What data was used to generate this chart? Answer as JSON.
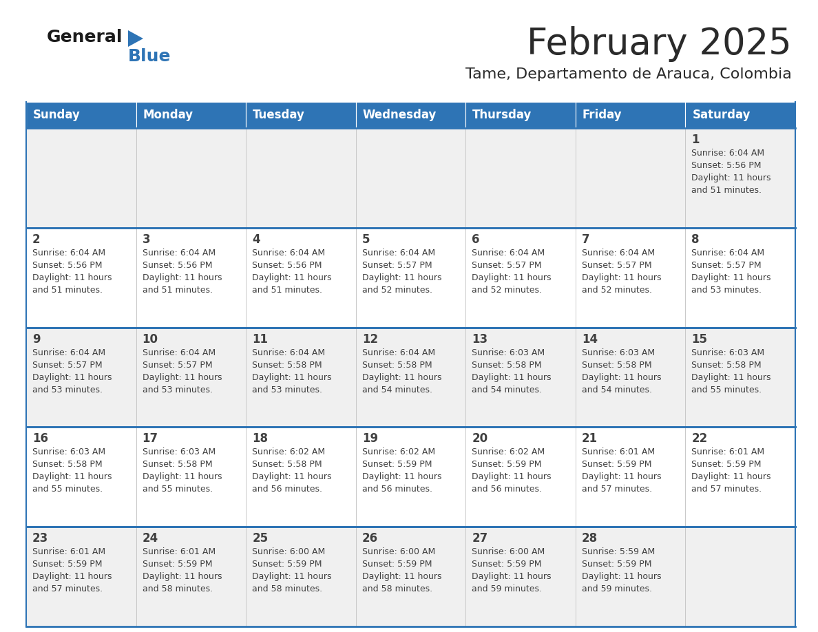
{
  "title": "February 2025",
  "subtitle": "Tame, Departamento de Arauca, Colombia",
  "header_bg": "#2E74B5",
  "header_text": "#FFFFFF",
  "cell_bg_odd": "#F0F0F0",
  "cell_bg_even": "#FFFFFF",
  "row_line_color": "#2E74B5",
  "text_color": "#404040",
  "days_of_week": [
    "Sunday",
    "Monday",
    "Tuesday",
    "Wednesday",
    "Thursday",
    "Friday",
    "Saturday"
  ],
  "calendar_data": [
    [
      null,
      null,
      null,
      null,
      null,
      null,
      {
        "day": 1,
        "sunrise": "6:04 AM",
        "sunset": "5:56 PM",
        "daylight_line1": "Daylight: 11 hours",
        "daylight_line2": "and 51 minutes."
      }
    ],
    [
      {
        "day": 2,
        "sunrise": "6:04 AM",
        "sunset": "5:56 PM",
        "daylight_line1": "Daylight: 11 hours",
        "daylight_line2": "and 51 minutes."
      },
      {
        "day": 3,
        "sunrise": "6:04 AM",
        "sunset": "5:56 PM",
        "daylight_line1": "Daylight: 11 hours",
        "daylight_line2": "and 51 minutes."
      },
      {
        "day": 4,
        "sunrise": "6:04 AM",
        "sunset": "5:56 PM",
        "daylight_line1": "Daylight: 11 hours",
        "daylight_line2": "and 51 minutes."
      },
      {
        "day": 5,
        "sunrise": "6:04 AM",
        "sunset": "5:57 PM",
        "daylight_line1": "Daylight: 11 hours",
        "daylight_line2": "and 52 minutes."
      },
      {
        "day": 6,
        "sunrise": "6:04 AM",
        "sunset": "5:57 PM",
        "daylight_line1": "Daylight: 11 hours",
        "daylight_line2": "and 52 minutes."
      },
      {
        "day": 7,
        "sunrise": "6:04 AM",
        "sunset": "5:57 PM",
        "daylight_line1": "Daylight: 11 hours",
        "daylight_line2": "and 52 minutes."
      },
      {
        "day": 8,
        "sunrise": "6:04 AM",
        "sunset": "5:57 PM",
        "daylight_line1": "Daylight: 11 hours",
        "daylight_line2": "and 53 minutes."
      }
    ],
    [
      {
        "day": 9,
        "sunrise": "6:04 AM",
        "sunset": "5:57 PM",
        "daylight_line1": "Daylight: 11 hours",
        "daylight_line2": "and 53 minutes."
      },
      {
        "day": 10,
        "sunrise": "6:04 AM",
        "sunset": "5:57 PM",
        "daylight_line1": "Daylight: 11 hours",
        "daylight_line2": "and 53 minutes."
      },
      {
        "day": 11,
        "sunrise": "6:04 AM",
        "sunset": "5:58 PM",
        "daylight_line1": "Daylight: 11 hours",
        "daylight_line2": "and 53 minutes."
      },
      {
        "day": 12,
        "sunrise": "6:04 AM",
        "sunset": "5:58 PM",
        "daylight_line1": "Daylight: 11 hours",
        "daylight_line2": "and 54 minutes."
      },
      {
        "day": 13,
        "sunrise": "6:03 AM",
        "sunset": "5:58 PM",
        "daylight_line1": "Daylight: 11 hours",
        "daylight_line2": "and 54 minutes."
      },
      {
        "day": 14,
        "sunrise": "6:03 AM",
        "sunset": "5:58 PM",
        "daylight_line1": "Daylight: 11 hours",
        "daylight_line2": "and 54 minutes."
      },
      {
        "day": 15,
        "sunrise": "6:03 AM",
        "sunset": "5:58 PM",
        "daylight_line1": "Daylight: 11 hours",
        "daylight_line2": "and 55 minutes."
      }
    ],
    [
      {
        "day": 16,
        "sunrise": "6:03 AM",
        "sunset": "5:58 PM",
        "daylight_line1": "Daylight: 11 hours",
        "daylight_line2": "and 55 minutes."
      },
      {
        "day": 17,
        "sunrise": "6:03 AM",
        "sunset": "5:58 PM",
        "daylight_line1": "Daylight: 11 hours",
        "daylight_line2": "and 55 minutes."
      },
      {
        "day": 18,
        "sunrise": "6:02 AM",
        "sunset": "5:58 PM",
        "daylight_line1": "Daylight: 11 hours",
        "daylight_line2": "and 56 minutes."
      },
      {
        "day": 19,
        "sunrise": "6:02 AM",
        "sunset": "5:59 PM",
        "daylight_line1": "Daylight: 11 hours",
        "daylight_line2": "and 56 minutes."
      },
      {
        "day": 20,
        "sunrise": "6:02 AM",
        "sunset": "5:59 PM",
        "daylight_line1": "Daylight: 11 hours",
        "daylight_line2": "and 56 minutes."
      },
      {
        "day": 21,
        "sunrise": "6:01 AM",
        "sunset": "5:59 PM",
        "daylight_line1": "Daylight: 11 hours",
        "daylight_line2": "and 57 minutes."
      },
      {
        "day": 22,
        "sunrise": "6:01 AM",
        "sunset": "5:59 PM",
        "daylight_line1": "Daylight: 11 hours",
        "daylight_line2": "and 57 minutes."
      }
    ],
    [
      {
        "day": 23,
        "sunrise": "6:01 AM",
        "sunset": "5:59 PM",
        "daylight_line1": "Daylight: 11 hours",
        "daylight_line2": "and 57 minutes."
      },
      {
        "day": 24,
        "sunrise": "6:01 AM",
        "sunset": "5:59 PM",
        "daylight_line1": "Daylight: 11 hours",
        "daylight_line2": "and 58 minutes."
      },
      {
        "day": 25,
        "sunrise": "6:00 AM",
        "sunset": "5:59 PM",
        "daylight_line1": "Daylight: 11 hours",
        "daylight_line2": "and 58 minutes."
      },
      {
        "day": 26,
        "sunrise": "6:00 AM",
        "sunset": "5:59 PM",
        "daylight_line1": "Daylight: 11 hours",
        "daylight_line2": "and 58 minutes."
      },
      {
        "day": 27,
        "sunrise": "6:00 AM",
        "sunset": "5:59 PM",
        "daylight_line1": "Daylight: 11 hours",
        "daylight_line2": "and 59 minutes."
      },
      {
        "day": 28,
        "sunrise": "5:59 AM",
        "sunset": "5:59 PM",
        "daylight_line1": "Daylight: 11 hours",
        "daylight_line2": "and 59 minutes."
      },
      null
    ]
  ]
}
